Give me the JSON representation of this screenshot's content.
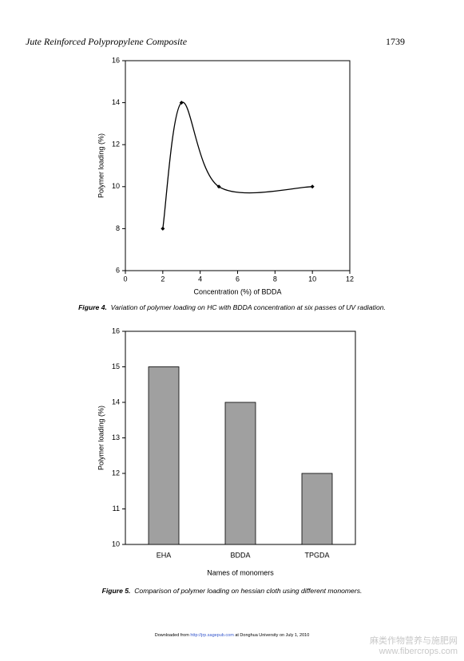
{
  "header": {
    "running_title": "Jute Reinforced Polypropylene Composite",
    "page_number": "1739"
  },
  "chart_data": [
    {
      "type": "line",
      "xlabel": "Concentration (%) of BDDA",
      "ylabel": "Polymer loading (%)",
      "x": [
        2,
        3,
        5,
        10
      ],
      "values": [
        8,
        14,
        10,
        10
      ],
      "xlim": [
        0,
        12
      ],
      "ylim": [
        6,
        16
      ],
      "xticks": [
        0,
        2,
        4,
        6,
        8,
        10,
        12
      ],
      "yticks": [
        6,
        8,
        10,
        12,
        14,
        16
      ],
      "color": "#000000",
      "smooth": true,
      "caption_label": "Figure 4.",
      "caption": "Variation of polymer loading on HC with BDDA concentration at six passes of UV radiation."
    },
    {
      "type": "bar",
      "xlabel": "Names of monomers",
      "ylabel": "Polymer loading (%)",
      "categories": [
        "EHA",
        "BDDA",
        "TPGDA"
      ],
      "values": [
        15,
        14,
        12
      ],
      "ylim": [
        10,
        16
      ],
      "yticks": [
        10,
        11,
        12,
        13,
        14,
        15,
        16
      ],
      "color": "#a0a0a0",
      "caption_label": "Figure 5.",
      "caption": "Comparison of polymer loading on hessian cloth using different monomers."
    }
  ],
  "footer": {
    "prefix": "Downloaded from",
    "link": "http://jrp.sagepub.com",
    "suffix": "at Donghua University on July 1, 2010"
  },
  "watermark": {
    "text": "麻类作物营养与施肥网",
    "url": "www.fibercrops.com"
  }
}
